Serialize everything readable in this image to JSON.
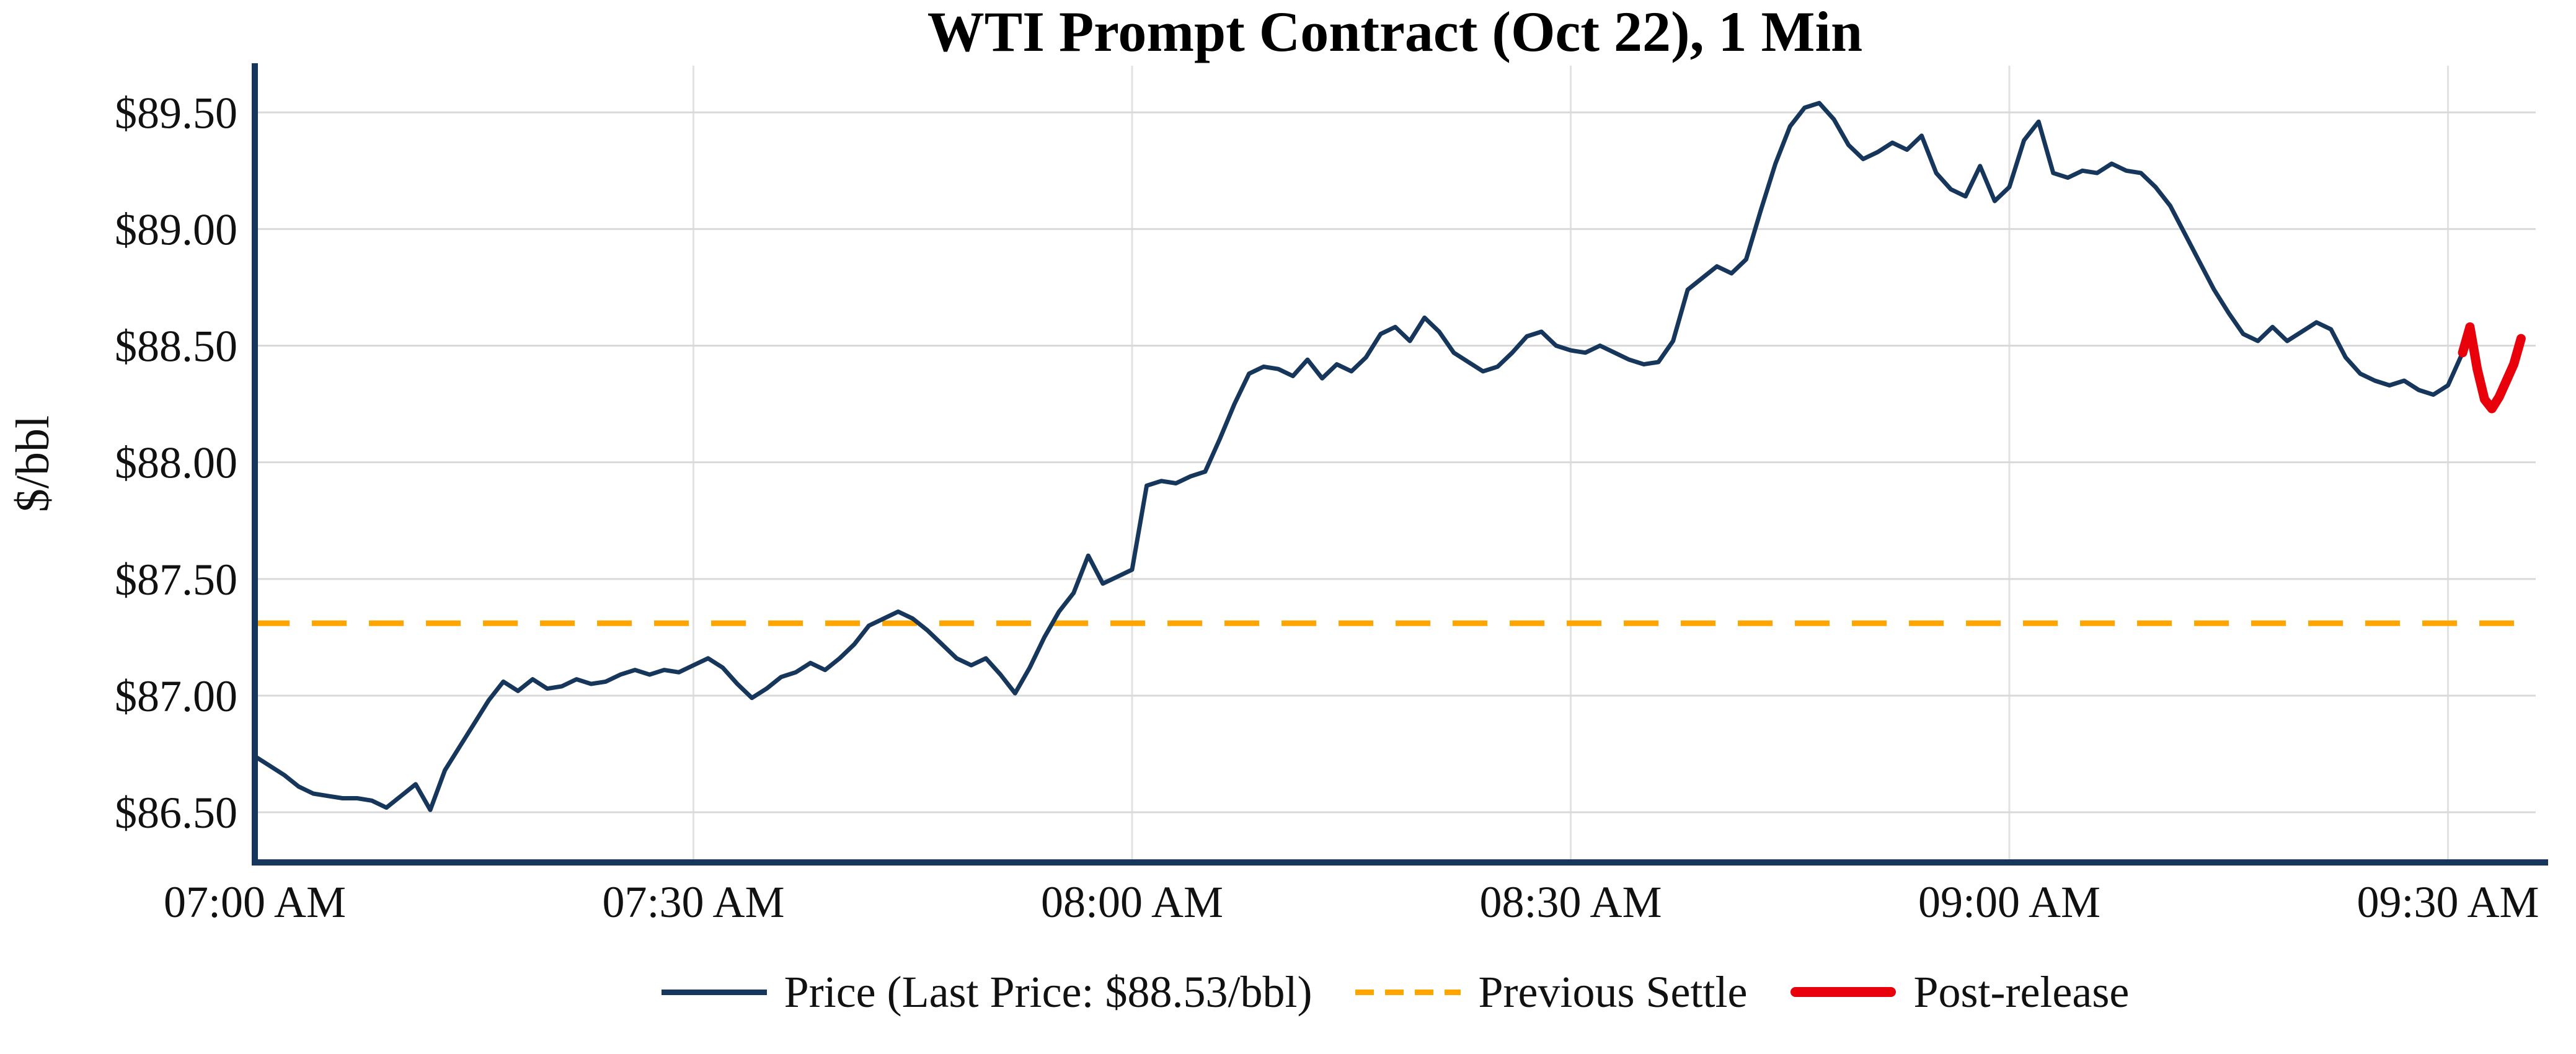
{
  "chart_data": {
    "type": "line",
    "title": "WTI Prompt Contract (Oct 22), 1 Min",
    "ylabel": "$/bbl",
    "xlabel": "",
    "grid": true,
    "legend_position": "bottom-center",
    "xlim_minutes": [
      0,
      156
    ],
    "ylim": [
      86.285,
      89.7
    ],
    "x_ticks": [
      {
        "minute": 0,
        "label": "07:00 AM"
      },
      {
        "minute": 30,
        "label": "07:30 AM"
      },
      {
        "minute": 60,
        "label": "08:00 AM"
      },
      {
        "minute": 90,
        "label": "08:30 AM"
      },
      {
        "minute": 120,
        "label": "09:00 AM"
      },
      {
        "minute": 150,
        "label": "09:30 AM"
      }
    ],
    "y_ticks": [
      {
        "value": 86.5,
        "label": "$86.50"
      },
      {
        "value": 87.0,
        "label": "$87.00"
      },
      {
        "value": 87.5,
        "label": "$87.50"
      },
      {
        "value": 88.0,
        "label": "$88.00"
      },
      {
        "value": 88.5,
        "label": "$88.50"
      },
      {
        "value": 89.0,
        "label": "$89.00"
      },
      {
        "value": 89.5,
        "label": "$89.50"
      }
    ],
    "previous_settle": 87.31,
    "last_price": 88.53,
    "colors": {
      "price": "#16365c",
      "previous_settle": "#FFA500",
      "post_release": "#e8000b",
      "grid": "#d9d9d9",
      "grid_vertical": "#e2e2e2",
      "spine": "#16365c",
      "text": "#111111"
    },
    "series": [
      {
        "name": "Price",
        "style": "solid",
        "color_key": "price",
        "points": [
          [
            0,
            86.74
          ],
          [
            1,
            86.7
          ],
          [
            2,
            86.66
          ],
          [
            3,
            86.61
          ],
          [
            4,
            86.58
          ],
          [
            5,
            86.57
          ],
          [
            6,
            86.56
          ],
          [
            7,
            86.56
          ],
          [
            8,
            86.55
          ],
          [
            9,
            86.52
          ],
          [
            10,
            86.57
          ],
          [
            11,
            86.62
          ],
          [
            12,
            86.51
          ],
          [
            13,
            86.68
          ],
          [
            14,
            86.78
          ],
          [
            15,
            86.88
          ],
          [
            16,
            86.98
          ],
          [
            17,
            87.06
          ],
          [
            18,
            87.02
          ],
          [
            19,
            87.07
          ],
          [
            20,
            87.03
          ],
          [
            21,
            87.04
          ],
          [
            22,
            87.07
          ],
          [
            23,
            87.05
          ],
          [
            24,
            87.06
          ],
          [
            25,
            87.09
          ],
          [
            26,
            87.11
          ],
          [
            27,
            87.09
          ],
          [
            28,
            87.11
          ],
          [
            29,
            87.1
          ],
          [
            30,
            87.13
          ],
          [
            31,
            87.16
          ],
          [
            32,
            87.12
          ],
          [
            33,
            87.05
          ],
          [
            34,
            86.99
          ],
          [
            35,
            87.03
          ],
          [
            36,
            87.08
          ],
          [
            37,
            87.1
          ],
          [
            38,
            87.14
          ],
          [
            39,
            87.11
          ],
          [
            40,
            87.16
          ],
          [
            41,
            87.22
          ],
          [
            42,
            87.3
          ],
          [
            43,
            87.33
          ],
          [
            44,
            87.36
          ],
          [
            45,
            87.33
          ],
          [
            46,
            87.28
          ],
          [
            47,
            87.22
          ],
          [
            48,
            87.16
          ],
          [
            49,
            87.13
          ],
          [
            50,
            87.16
          ],
          [
            51,
            87.09
          ],
          [
            52,
            87.01
          ],
          [
            53,
            87.12
          ],
          [
            54,
            87.25
          ],
          [
            55,
            87.36
          ],
          [
            56,
            87.44
          ],
          [
            57,
            87.6
          ],
          [
            58,
            87.48
          ],
          [
            59,
            87.51
          ],
          [
            60,
            87.54
          ],
          [
            61,
            87.9
          ],
          [
            62,
            87.92
          ],
          [
            63,
            87.91
          ],
          [
            64,
            87.94
          ],
          [
            65,
            87.96
          ],
          [
            66,
            88.1
          ],
          [
            67,
            88.25
          ],
          [
            68,
            88.38
          ],
          [
            69,
            88.41
          ],
          [
            70,
            88.4
          ],
          [
            71,
            88.37
          ],
          [
            72,
            88.44
          ],
          [
            73,
            88.36
          ],
          [
            74,
            88.42
          ],
          [
            75,
            88.39
          ],
          [
            76,
            88.45
          ],
          [
            77,
            88.55
          ],
          [
            78,
            88.58
          ],
          [
            79,
            88.52
          ],
          [
            80,
            88.62
          ],
          [
            81,
            88.56
          ],
          [
            82,
            88.47
          ],
          [
            83,
            88.43
          ],
          [
            84,
            88.39
          ],
          [
            85,
            88.41
          ],
          [
            86,
            88.47
          ],
          [
            87,
            88.54
          ],
          [
            88,
            88.56
          ],
          [
            89,
            88.5
          ],
          [
            90,
            88.48
          ],
          [
            91,
            88.47
          ],
          [
            92,
            88.5
          ],
          [
            93,
            88.47
          ],
          [
            94,
            88.44
          ],
          [
            95,
            88.42
          ],
          [
            96,
            88.43
          ],
          [
            97,
            88.52
          ],
          [
            98,
            88.74
          ],
          [
            99,
            88.79
          ],
          [
            100,
            88.84
          ],
          [
            101,
            88.81
          ],
          [
            102,
            88.87
          ],
          [
            103,
            89.08
          ],
          [
            104,
            89.28
          ],
          [
            105,
            89.44
          ],
          [
            106,
            89.52
          ],
          [
            107,
            89.54
          ],
          [
            108,
            89.47
          ],
          [
            109,
            89.36
          ],
          [
            110,
            89.3
          ],
          [
            111,
            89.33
          ],
          [
            112,
            89.37
          ],
          [
            113,
            89.34
          ],
          [
            114,
            89.4
          ],
          [
            115,
            89.24
          ],
          [
            116,
            89.17
          ],
          [
            117,
            89.14
          ],
          [
            118,
            89.27
          ],
          [
            119,
            89.12
          ],
          [
            120,
            89.18
          ],
          [
            121,
            89.38
          ],
          [
            122,
            89.46
          ],
          [
            123,
            89.24
          ],
          [
            124,
            89.22
          ],
          [
            125,
            89.25
          ],
          [
            126,
            89.24
          ],
          [
            127,
            89.28
          ],
          [
            128,
            89.25
          ],
          [
            129,
            89.24
          ],
          [
            130,
            89.18
          ],
          [
            131,
            89.1
          ],
          [
            132,
            88.98
          ],
          [
            133,
            88.86
          ],
          [
            134,
            88.74
          ],
          [
            135,
            88.64
          ],
          [
            136,
            88.55
          ],
          [
            137,
            88.52
          ],
          [
            138,
            88.58
          ],
          [
            139,
            88.52
          ],
          [
            140,
            88.56
          ],
          [
            141,
            88.6
          ],
          [
            142,
            88.57
          ],
          [
            143,
            88.45
          ],
          [
            144,
            88.38
          ],
          [
            145,
            88.35
          ],
          [
            146,
            88.33
          ],
          [
            147,
            88.35
          ],
          [
            148,
            88.31
          ],
          [
            149,
            88.29
          ],
          [
            150,
            88.33
          ],
          [
            151,
            88.47
          ]
        ]
      },
      {
        "name": "Post-release",
        "style": "solid-thick",
        "color_key": "post_release",
        "points": [
          [
            151,
            88.47
          ],
          [
            151.5,
            88.58
          ],
          [
            152,
            88.4
          ],
          [
            152.5,
            88.27
          ],
          [
            153,
            88.23
          ],
          [
            153.5,
            88.28
          ],
          [
            154,
            88.35
          ],
          [
            154.5,
            88.42
          ],
          [
            155,
            88.53
          ]
        ]
      }
    ],
    "legend": [
      {
        "label": "Price (Last Price: $88.53/bbl)",
        "swatch": "solid-navy-line"
      },
      {
        "label": "Previous Settle",
        "swatch": "dashed-orange-line"
      },
      {
        "label": "Post-release",
        "swatch": "thick-red-line"
      }
    ]
  }
}
